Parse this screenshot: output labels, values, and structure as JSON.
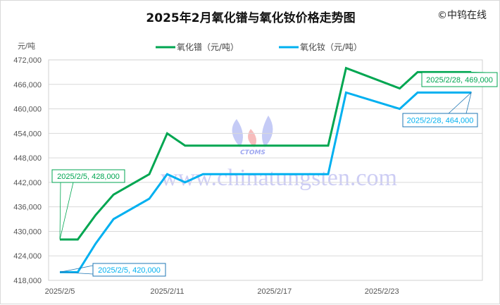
{
  "header": {
    "title": "2025年2月氧化镨与氧化钕价格走势图",
    "copyright": "©中钨在线"
  },
  "watermark": {
    "url": "www.chinatungsten.com",
    "logo_text": "CTOMS"
  },
  "chart_data": {
    "type": "line",
    "title": "2025年2月氧化镨与氧化钕价格走势图",
    "ylabel": "元/吨",
    "xlabel": "",
    "ylim": [
      418000,
      472000
    ],
    "y_ticks": [
      418000,
      424000,
      430000,
      436000,
      442000,
      448000,
      454000,
      460000,
      466000,
      472000
    ],
    "y_tick_labels": [
      "418,000",
      "424,000",
      "430,000",
      "436,000",
      "442,000",
      "448,000",
      "454,000",
      "460,000",
      "466,000",
      "472,000"
    ],
    "x_tick_labels": [
      "2025/2/5",
      "2025/2/11",
      "2025/2/17",
      "2025/2/23"
    ],
    "x": [
      "2025/2/5",
      "2025/2/6",
      "2025/2/7",
      "2025/2/8",
      "2025/2/10",
      "2025/2/11",
      "2025/2/12",
      "2025/2/13",
      "2025/2/14",
      "2025/2/17",
      "2025/2/18",
      "2025/2/19",
      "2025/2/20",
      "2025/2/21",
      "2025/2/24",
      "2025/2/25",
      "2025/2/26",
      "2025/2/27",
      "2025/2/28"
    ],
    "grid": true,
    "legend_position": "top",
    "series": [
      {
        "name": "氧化镨（元/吨）",
        "color": "#00a651",
        "values": [
          428000,
          428000,
          434000,
          439000,
          444000,
          454000,
          451000,
          451000,
          451000,
          451000,
          451000,
          451000,
          451000,
          470000,
          465000,
          469000,
          469000,
          469000,
          469000
        ]
      },
      {
        "name": "氧化钕（元/吨）",
        "color": "#00b0f0",
        "values": [
          420000,
          420000,
          427000,
          433000,
          438000,
          444000,
          442000,
          444000,
          444000,
          444000,
          444000,
          444000,
          444000,
          464000,
          460000,
          464000,
          464000,
          464000,
          464000
        ]
      }
    ],
    "annotations": [
      {
        "series": 0,
        "text": "2025/2/5, 428,000"
      },
      {
        "series": 1,
        "text": "2025/2/5, 420,000"
      },
      {
        "series": 0,
        "text": "2025/2/28, 469,000"
      },
      {
        "series": 1,
        "text": "2025/2/28, 464,000"
      }
    ]
  }
}
